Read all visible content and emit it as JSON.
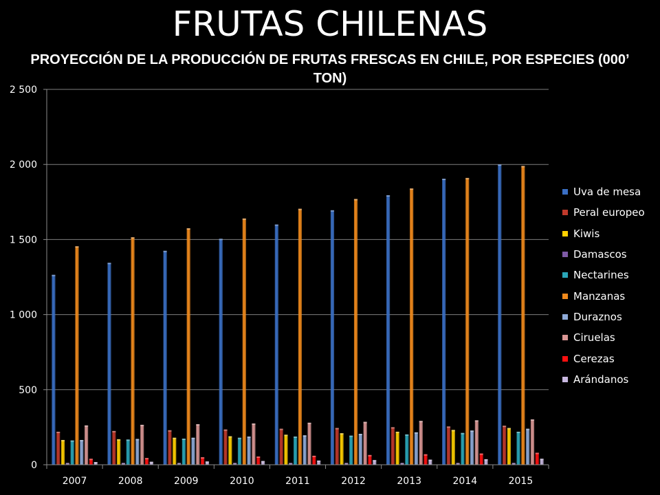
{
  "slide": {
    "title": "FRUTAS CHILENAS"
  },
  "chart_data": {
    "type": "bar",
    "title": "PROYECCIÓN DE LA PRODUCCIÓN DE FRUTAS FRESCAS EN CHILE, POR ESPECIES (000’ TON)",
    "xlabel": "",
    "ylabel": "",
    "ylim": [
      0,
      2500
    ],
    "yticks": [
      0,
      500,
      1000,
      1500,
      2000,
      2500
    ],
    "ytick_labels": [
      "0",
      "500",
      "1 000",
      "1 500",
      "2 000",
      "2 500"
    ],
    "grid": true,
    "legend_position": "right",
    "categories": [
      "2007",
      "2008",
      "2009",
      "2010",
      "2011",
      "2012",
      "2013",
      "2014",
      "2015"
    ],
    "series": [
      {
        "name": "Uva de mesa",
        "color": "#3a6fc4",
        "values": [
          1265,
          1345,
          1425,
          1505,
          1600,
          1695,
          1795,
          1905,
          2000
        ]
      },
      {
        "name": "Peral europeo",
        "color": "#c0392b",
        "values": [
          220,
          225,
          230,
          235,
          240,
          245,
          250,
          255,
          260
        ]
      },
      {
        "name": "Kiwis",
        "color": "#ffd000",
        "values": [
          165,
          170,
          180,
          190,
          200,
          210,
          220,
          232,
          245
        ]
      },
      {
        "name": "Damascos",
        "color": "#7e5aa6",
        "values": [
          12,
          12,
          12,
          12,
          12,
          12,
          12,
          12,
          12
        ]
      },
      {
        "name": "Nectarines",
        "color": "#2aa6b8",
        "values": [
          162,
          168,
          174,
          180,
          188,
          194,
          202,
          212,
          220
        ]
      },
      {
        "name": "Manzanas",
        "color": "#f08a1c",
        "values": [
          1455,
          1515,
          1575,
          1640,
          1705,
          1770,
          1840,
          1910,
          1990
        ]
      },
      {
        "name": "Duraznos",
        "color": "#8eaad8",
        "values": [
          165,
          172,
          180,
          188,
          196,
          206,
          216,
          228,
          240
        ]
      },
      {
        "name": "Ciruelas",
        "color": "#d99694",
        "values": [
          262,
          266,
          270,
          275,
          280,
          286,
          292,
          296,
          302
        ]
      },
      {
        "name": "Cerezas",
        "color": "#ff1010",
        "values": [
          40,
          45,
          50,
          55,
          60,
          65,
          70,
          75,
          80
        ]
      },
      {
        "name": "Arándanos",
        "color": "#c8b8e0",
        "values": [
          18,
          20,
          22,
          25,
          28,
          31,
          34,
          37,
          40
        ]
      }
    ]
  }
}
